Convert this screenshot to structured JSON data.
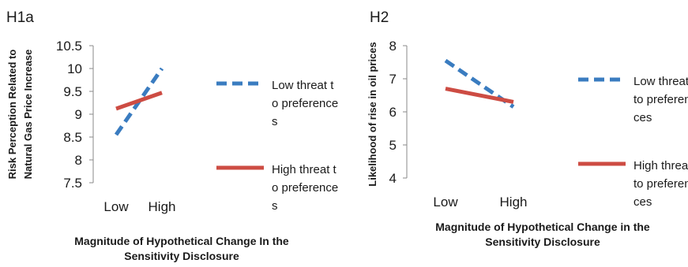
{
  "colors": {
    "low": "#3a7cc0",
    "high": "#cd4c43",
    "axis": "#8a8a8a"
  },
  "chart_data": [
    {
      "panel": "H1a",
      "type": "line",
      "title": "H1a",
      "xlabel": "Magnitude of Hypothetical Change In the Sensitivity Disclosure",
      "ylabel": "Risk Perception Related to Natural Gas Price Increase",
      "categories": [
        "Low",
        "High"
      ],
      "yticks": [
        "7.5",
        "8",
        "8.5",
        "9",
        "9.5",
        "10",
        "10.5"
      ],
      "ylim": [
        7.5,
        10.5
      ],
      "series": [
        {
          "name": "Low threat to preferences",
          "values": [
            8.55,
            10.0
          ]
        },
        {
          "name": "High threat to preferences",
          "values": [
            9.12,
            9.47
          ]
        }
      ],
      "legend_position": "right"
    },
    {
      "panel": "H2",
      "type": "line",
      "title": "H2",
      "xlabel": "Magnitude of Hypothetical Change in the Sensitivity Disclosure",
      "ylabel": "Likelihood of rise in oil prices",
      "categories": [
        "Low",
        "High"
      ],
      "yticks": [
        "4",
        "5",
        "6",
        "7",
        "8"
      ],
      "ylim": [
        4,
        8
      ],
      "series": [
        {
          "name": "Low threat to preferences",
          "values": [
            7.55,
            6.15
          ]
        },
        {
          "name": "High threat to preferences",
          "values": [
            6.7,
            6.3
          ]
        }
      ],
      "legend_position": "right"
    }
  ],
  "legend_text": {
    "h1a": {
      "low": "Low threat to preferences",
      "high": "High threat to preferences"
    },
    "h2": {
      "low": "Low threat to preferences",
      "high": "High threat to preferences"
    }
  }
}
